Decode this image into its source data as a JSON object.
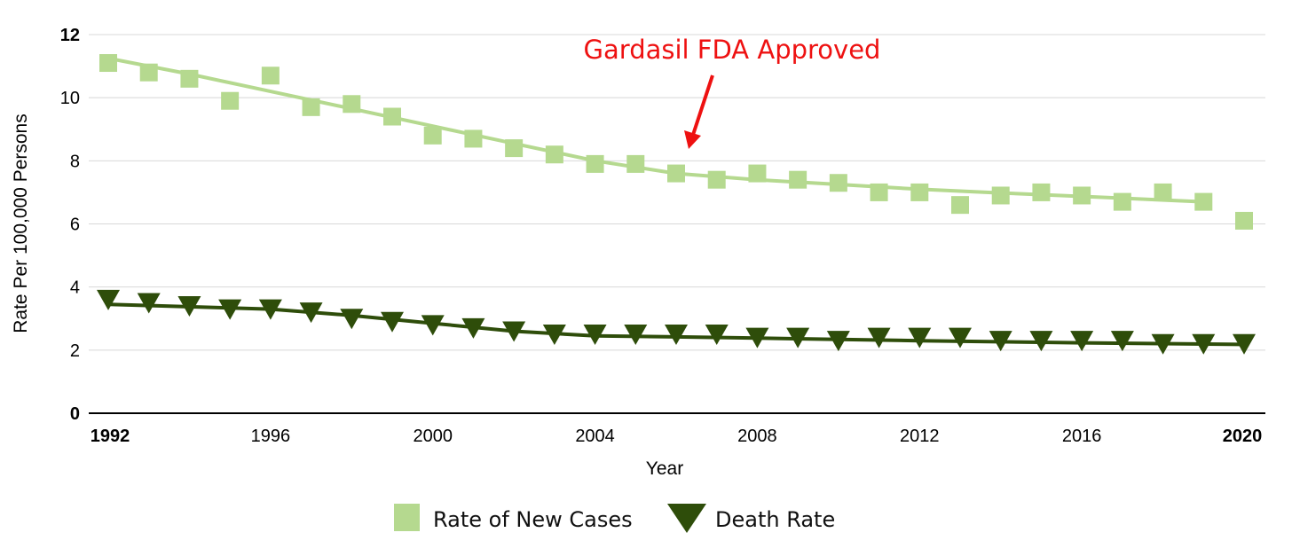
{
  "chart_data": {
    "type": "line",
    "title": "",
    "xlabel": "Year",
    "ylabel": "Rate Per 100,000 Persons",
    "xlim": [
      1992,
      2020
    ],
    "ylim": [
      0,
      12
    ],
    "y_ticks": [
      0,
      2,
      4,
      6,
      8,
      10,
      12
    ],
    "y_tick_labels": [
      "0",
      "2",
      "4",
      "6",
      "8",
      "10",
      "12"
    ],
    "x_ticks": [
      1992,
      1996,
      2000,
      2004,
      2008,
      2012,
      2016,
      2020
    ],
    "x_tick_labels": [
      "1992",
      "1996",
      "2000",
      "2004",
      "2008",
      "2012",
      "2016",
      "2020"
    ],
    "grid": true,
    "legend_position": "bottom",
    "x": [
      1992,
      1993,
      1994,
      1995,
      1996,
      1997,
      1998,
      1999,
      2000,
      2001,
      2002,
      2003,
      2004,
      2005,
      2006,
      2007,
      2008,
      2009,
      2010,
      2011,
      2012,
      2013,
      2014,
      2015,
      2016,
      2017,
      2018,
      2019,
      2020
    ],
    "series": [
      {
        "name": "Rate of New Cases",
        "marker": "square",
        "color": "#b5d98f",
        "values": [
          11.1,
          10.8,
          10.6,
          9.9,
          10.7,
          9.7,
          9.8,
          9.4,
          8.8,
          8.7,
          8.4,
          8.2,
          7.9,
          7.9,
          7.6,
          7.4,
          7.6,
          7.4,
          7.3,
          7.0,
          7.0,
          6.6,
          6.9,
          7.0,
          6.9,
          6.7,
          7.0,
          6.7,
          6.1
        ],
        "trend_x": [
          1992,
          1994,
          1996,
          1998,
          2000,
          2002,
          2004,
          2006,
          2008,
          2010,
          2012,
          2014,
          2016,
          2019
        ],
        "trend": [
          11.25,
          10.75,
          10.2,
          9.65,
          9.1,
          8.55,
          8.0,
          7.6,
          7.4,
          7.25,
          7.1,
          6.98,
          6.87,
          6.7
        ]
      },
      {
        "name": "Death Rate",
        "marker": "triangle-down",
        "color": "#2e4d0a",
        "values": [
          3.6,
          3.5,
          3.4,
          3.3,
          3.3,
          3.2,
          3.0,
          2.9,
          2.8,
          2.7,
          2.6,
          2.5,
          2.5,
          2.5,
          2.5,
          2.5,
          2.4,
          2.4,
          2.3,
          2.4,
          2.4,
          2.4,
          2.3,
          2.3,
          2.3,
          2.3,
          2.2,
          2.2,
          2.2
        ],
        "trend_x": [
          1992,
          1996,
          1998,
          2000,
          2002,
          2004,
          2006,
          2008,
          2012,
          2016,
          2020
        ],
        "trend": [
          3.45,
          3.3,
          3.1,
          2.85,
          2.6,
          2.45,
          2.42,
          2.38,
          2.3,
          2.23,
          2.18
        ]
      }
    ],
    "annotations": [
      {
        "text": "Gardasil FDA Approved",
        "x": 2006.2,
        "y": 7.9,
        "color": "#ee1111"
      }
    ]
  }
}
